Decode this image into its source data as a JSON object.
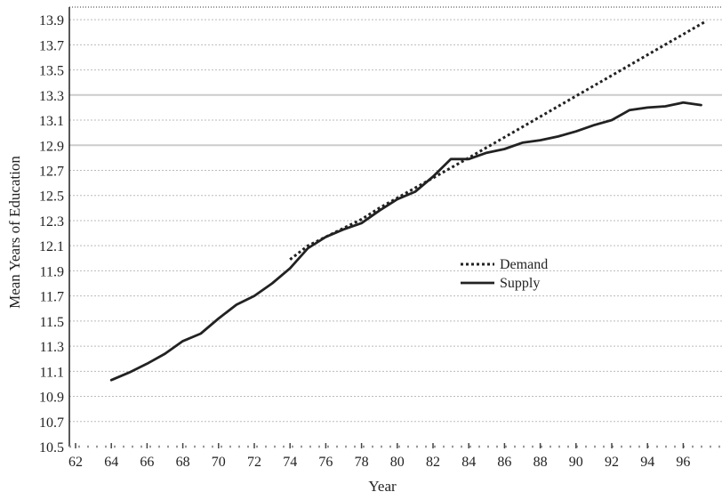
{
  "chart_data": {
    "type": "line",
    "title": "",
    "xlabel": "Year",
    "ylabel": "Mean Years of Education",
    "xlim": [
      61.6,
      97.3
    ],
    "ylim": [
      10.5,
      14.0
    ],
    "x_ticks": [
      62,
      64,
      66,
      68,
      70,
      72,
      74,
      76,
      78,
      80,
      82,
      84,
      86,
      88,
      90,
      92,
      94,
      96
    ],
    "y_ticks": [
      10.5,
      10.7,
      10.9,
      11.1,
      11.3,
      11.5,
      11.7,
      11.9,
      12.1,
      12.3,
      12.5,
      12.7,
      12.9,
      13.1,
      13.3,
      13.5,
      13.7,
      13.9
    ],
    "y_tick_labels": [
      "10.5",
      "10.7",
      "10.9",
      "11.1",
      "11.3",
      "11.5",
      "11.7",
      "11.9",
      "12.1",
      "12.3",
      "12.5",
      "12.7",
      "12.9",
      "13.1",
      "13.3",
      "13.5",
      "13.7",
      "13.9"
    ],
    "legend_position": "center-right",
    "grid": "horizontal dotted; solid lines at 12.9 and 13.3",
    "colors": {
      "lines": "#222222",
      "grid": "#bbbbbb",
      "grid_solid": "#cccccc"
    },
    "series": [
      {
        "name": "Demand",
        "style": "dotted",
        "x": [
          74,
          75,
          76,
          77,
          78,
          79,
          80,
          81,
          82,
          83,
          84,
          97.3
        ],
        "y": [
          11.99,
          12.1,
          12.17,
          12.24,
          12.31,
          12.4,
          12.48,
          12.56,
          12.64,
          12.72,
          12.8,
          13.89
        ]
      },
      {
        "name": "Supply",
        "style": "solid",
        "x": [
          64,
          65,
          66,
          67,
          68,
          69,
          70,
          71,
          72,
          73,
          74,
          75,
          76,
          77,
          78,
          79,
          80,
          81,
          82,
          83,
          84,
          85,
          86,
          87,
          88,
          89,
          90,
          91,
          92,
          93,
          94,
          95,
          96,
          97
        ],
        "y": [
          11.03,
          11.09,
          11.16,
          11.24,
          11.34,
          11.4,
          11.52,
          11.63,
          11.7,
          11.8,
          11.92,
          12.08,
          12.17,
          12.23,
          12.28,
          12.38,
          12.47,
          12.53,
          12.65,
          12.79,
          12.79,
          12.84,
          12.87,
          12.92,
          12.94,
          12.97,
          13.01,
          13.06,
          13.1,
          13.18,
          13.2,
          13.21,
          13.24,
          13.22
        ]
      }
    ]
  }
}
